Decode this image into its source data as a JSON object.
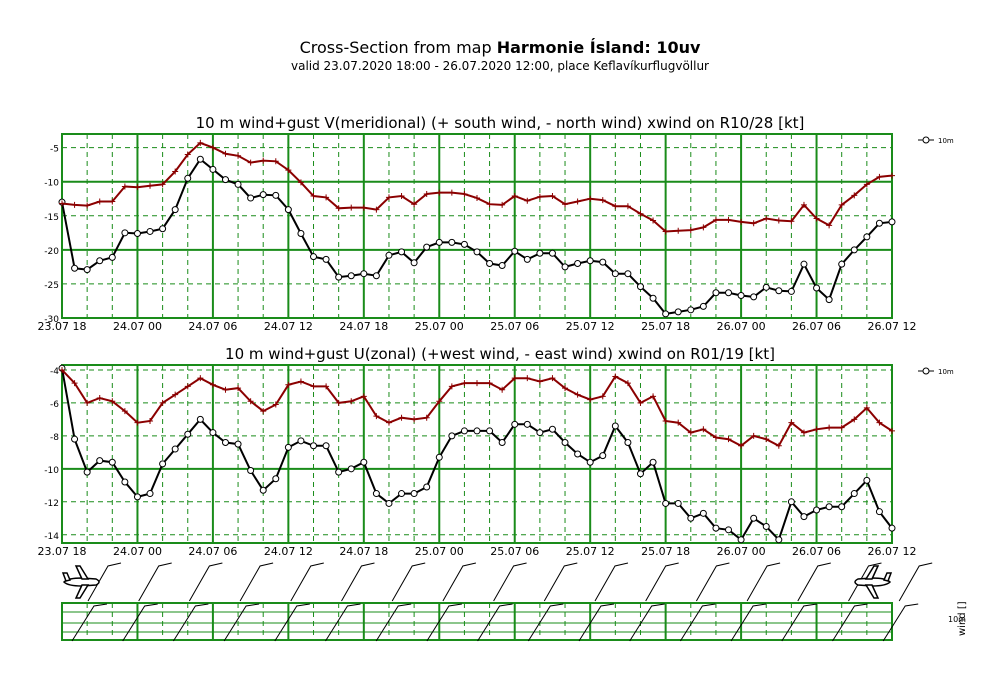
{
  "header": {
    "title_prefix": "Cross-Section from map ",
    "title_bold": "Harmonie Ísland: 10uv",
    "subtitle": "valid 23.07.2020 18:00 - 26.07.2020 12:00, place Keflavíkurflugvöllur"
  },
  "colors": {
    "grid": "#1a8c1a",
    "mean": "#000000",
    "gust": "#8b0000"
  },
  "legend_label": "10m",
  "barb_labels": {
    "level": "10m",
    "var": "wind []"
  },
  "chart_data": [
    {
      "type": "line",
      "title": "10 m wind+gust V(meridional) (+ south wind, - north wind) xwind on R10/28 [kt]",
      "ylim": [
        -30,
        -3
      ],
      "yticks": [
        -30,
        -25,
        -20,
        -15,
        -10,
        -5
      ],
      "xtick_labels": [
        "23.07 18",
        "24.07 00",
        "24.07 06",
        "24.07 12",
        "24.07 18",
        "25.07 00",
        "25.07 06",
        "25.07 12",
        "25.07 18",
        "26.07 00",
        "26.07 06",
        "26.07 12"
      ],
      "grid": true,
      "legend": "top-right",
      "series": [
        {
          "name": "10m",
          "marker": "circle",
          "values": [
            -13,
            -22.7,
            -22.9,
            -21.6,
            -21.1,
            -17.5,
            -17.6,
            -17.3,
            -16.9,
            -14.1,
            -9.5,
            -6.7,
            -8.2,
            -9.7,
            -10.4,
            -12.4,
            -11.9,
            -12,
            -14.1,
            -17.6,
            -21,
            -21.4,
            -24,
            -23.8,
            -23.5,
            -23.8,
            -20.8,
            -20.3,
            -21.9,
            -19.6,
            -18.9,
            -18.9,
            -19.2,
            -20.3,
            -22,
            -22.3,
            -20.2,
            -21.4,
            -20.5,
            -20.5,
            -22.5,
            -22,
            -21.6,
            -21.8,
            -23.5,
            -23.5,
            -25.4,
            -27.1,
            -29.4,
            -29.1,
            -28.8,
            -28.3,
            -26.3,
            -26.3,
            -26.7,
            -26.9,
            -25.5,
            -26,
            -26.1,
            -22.1,
            -25.6,
            -27.3,
            -22.1,
            -20,
            -18.1,
            -16.1,
            -15.9
          ]
        },
        {
          "name": "",
          "marker": "plus",
          "values": [
            -13.2,
            -13.4,
            -13.5,
            -12.9,
            -12.9,
            -10.7,
            -10.8,
            -10.6,
            -10.4,
            -8.5,
            -6,
            -4.3,
            -5,
            -5.9,
            -6.2,
            -7.2,
            -6.9,
            -7,
            -8.3,
            -10.1,
            -12.1,
            -12.3,
            -13.9,
            -13.8,
            -13.8,
            -14.1,
            -12.3,
            -12.1,
            -13.3,
            -11.8,
            -11.6,
            -11.6,
            -11.8,
            -12.4,
            -13.3,
            -13.4,
            -12.1,
            -12.8,
            -12.2,
            -12.1,
            -13.3,
            -12.9,
            -12.5,
            -12.7,
            -13.6,
            -13.6,
            -14.7,
            -15.7,
            -17.3,
            -17.2,
            -17.1,
            -16.7,
            -15.6,
            -15.6,
            -15.9,
            -16.1,
            -15.4,
            -15.7,
            -15.8,
            -13.4,
            -15.4,
            -16.4,
            -13.4,
            -12,
            -10.4,
            -9.3,
            -9.1
          ]
        }
      ]
    },
    {
      "type": "line",
      "title": "10 m wind+gust U(zonal) (+west wind, - east wind) xwind on R01/19 [kt]",
      "ylim": [
        -14.5,
        -3.7
      ],
      "yticks": [
        -14,
        -12,
        -10,
        -8,
        -6,
        -4
      ],
      "xtick_labels": [
        "23.07 18",
        "24.07 00",
        "24.07 06",
        "24.07 12",
        "24.07 18",
        "25.07 00",
        "25.07 06",
        "25.07 12",
        "25.07 18",
        "26.07 00",
        "26.07 06",
        "26.07 12"
      ],
      "grid": true,
      "legend": "top-right",
      "series": [
        {
          "name": "10m",
          "marker": "circle",
          "values": [
            -3.9,
            -8.2,
            -10.2,
            -9.5,
            -9.6,
            -10.8,
            -11.7,
            -11.5,
            -9.7,
            -8.8,
            -7.9,
            -7,
            -7.8,
            -8.4,
            -8.5,
            -10.1,
            -11.3,
            -10.6,
            -8.7,
            -8.3,
            -8.6,
            -8.6,
            -10.2,
            -10,
            -9.6,
            -11.5,
            -12.1,
            -11.5,
            -11.5,
            -11.1,
            -9.3,
            -8,
            -7.7,
            -7.7,
            -7.7,
            -8.4,
            -7.3,
            -7.3,
            -7.8,
            -7.6,
            -8.4,
            -9.1,
            -9.6,
            -9.2,
            -7.4,
            -8.4,
            -10.3,
            -9.6,
            -12.1,
            -12.1,
            -13,
            -12.7,
            -13.6,
            -13.7,
            -14.3,
            -13,
            -13.5,
            -14.3,
            -12,
            -12.9,
            -12.5,
            -12.3,
            -12.3,
            -11.5,
            -10.7,
            -12.6,
            -13.6
          ]
        },
        {
          "name": "",
          "marker": "plus",
          "values": [
            -4,
            -4.8,
            -6,
            -5.7,
            -5.9,
            -6.5,
            -7.2,
            -7.1,
            -6,
            -5.5,
            -5,
            -4.5,
            -4.9,
            -5.2,
            -5.1,
            -5.9,
            -6.5,
            -6.1,
            -4.9,
            -4.7,
            -5,
            -5,
            -6,
            -5.9,
            -5.6,
            -6.8,
            -7.2,
            -6.9,
            -7,
            -6.9,
            -5.9,
            -5,
            -4.8,
            -4.8,
            -4.8,
            -5.2,
            -4.5,
            -4.5,
            -4.7,
            -4.5,
            -5.1,
            -5.5,
            -5.8,
            -5.6,
            -4.4,
            -4.8,
            -6,
            -5.6,
            -7.1,
            -7.2,
            -7.8,
            -7.6,
            -8.1,
            -8.2,
            -8.6,
            -8,
            -8.2,
            -8.6,
            -7.2,
            -7.8,
            -7.6,
            -7.5,
            -7.5,
            -7,
            -6.3,
            -7.2,
            -7.7
          ]
        }
      ]
    }
  ]
}
